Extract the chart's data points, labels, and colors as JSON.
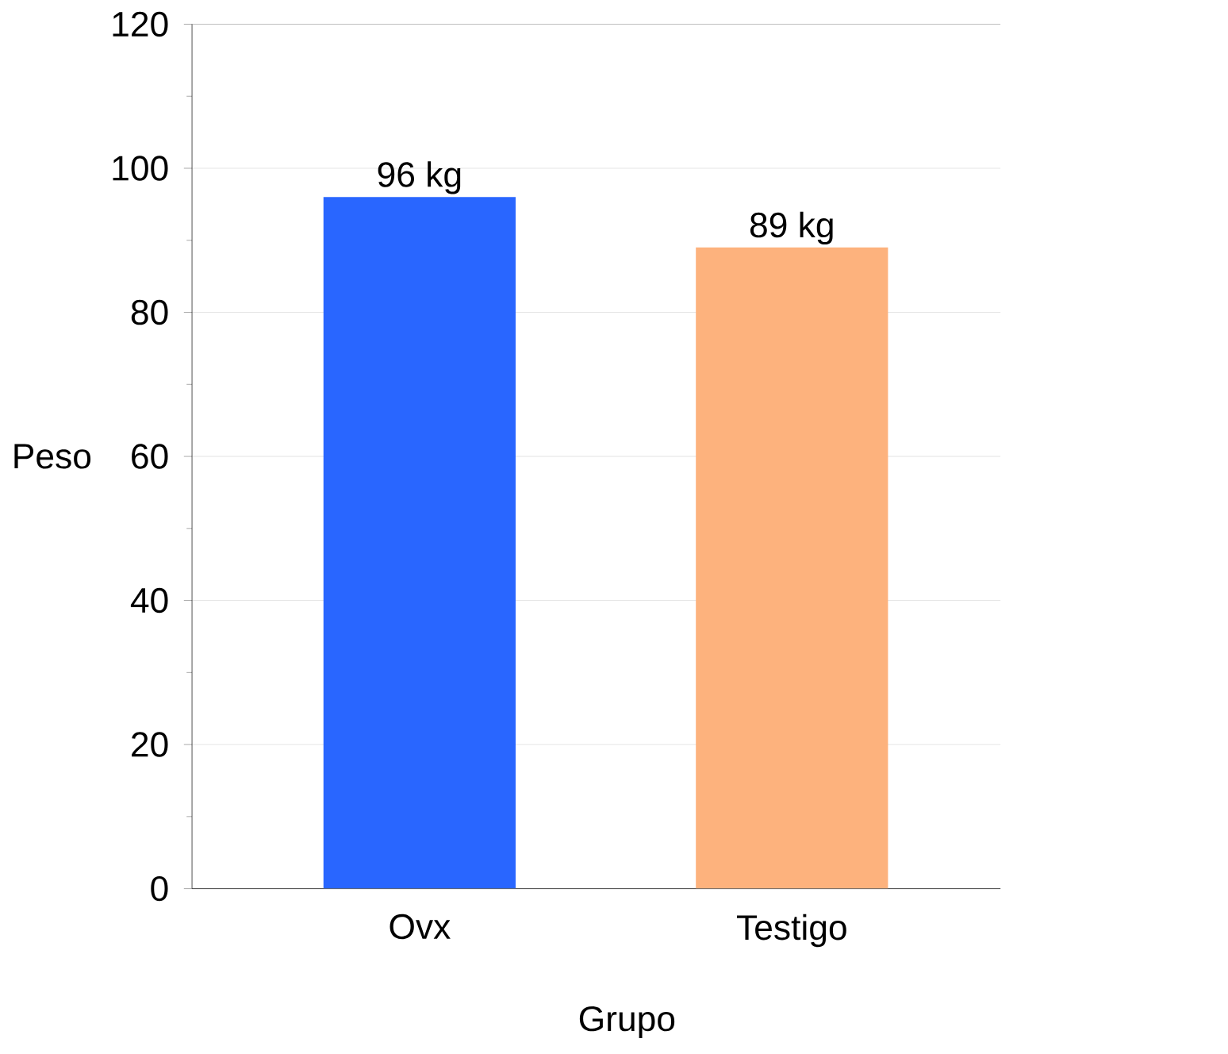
{
  "chart_data": {
    "type": "bar",
    "xlabel": "Grupo",
    "ylabel": "Peso",
    "categories": [
      "Ovx",
      "Testigo"
    ],
    "values": [
      96,
      89
    ],
    "colors": [
      "#2966ff",
      "#fdb27d"
    ],
    "value_labels": [
      "96 kg",
      "89 kg"
    ],
    "ylim": [
      0,
      120
    ],
    "yticks": [
      0,
      20,
      40,
      60,
      80,
      100,
      120
    ],
    "grid": "y"
  }
}
